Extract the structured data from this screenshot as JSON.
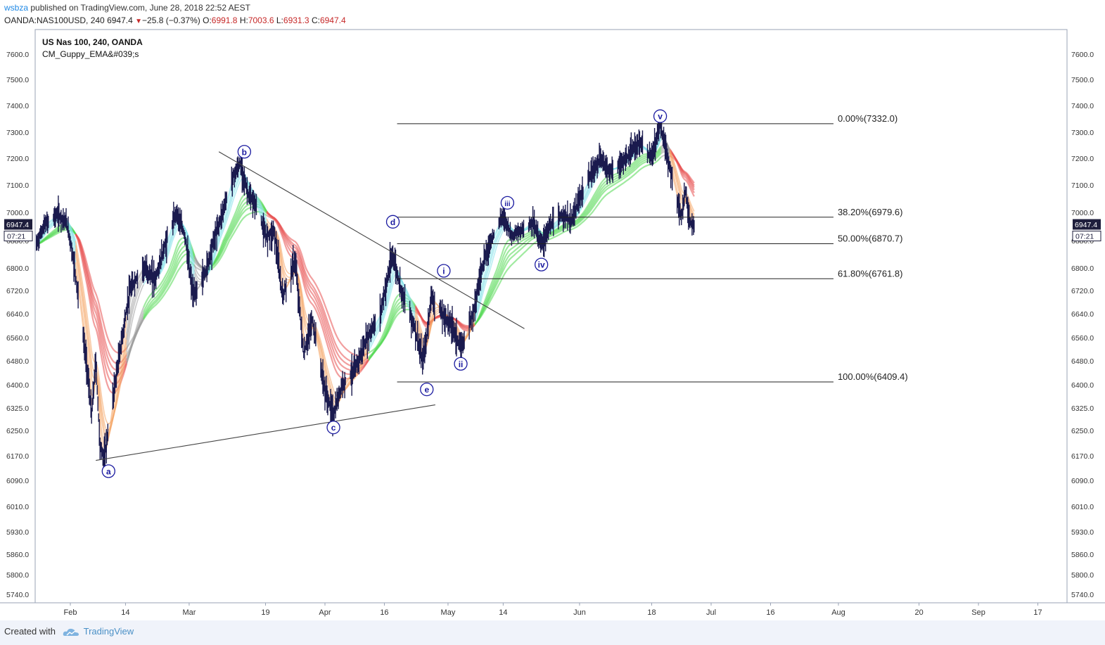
{
  "header": {
    "author": "wsbza",
    "published_text": " published on TradingView.com, June 28, 2018 22:52 AEST",
    "symbol": "OANDA:NAS100USD, 240",
    "last": "6947.4",
    "change": "−25.8 (−0.37%)",
    "o_label": "O:",
    "o_value": "6991.8",
    "h_label": "H:",
    "h_value": "7003.6",
    "l_label": "L:",
    "l_value": "6931.3",
    "c_label": "C:",
    "c_value": "6947.4"
  },
  "legend": {
    "title": "US Nas 100, 240, OANDA",
    "indicator": "CM_Guppy_EMA&#039;s"
  },
  "footer": {
    "created_with": "Created with",
    "brand": "TradingView"
  },
  "colors": {
    "bullish_fast": "#7fe0e8",
    "bullish_slow": "#52d852",
    "bearish_fast": "#f4a261",
    "bearish_slow": "#e85050",
    "neutral": "#9a9a9a",
    "candle": "#1a1a4e",
    "label": "#1a1aa0",
    "price_tag_bg": "#1e1e3c"
  },
  "chart_data": {
    "type": "candlestick",
    "title": "US Nas 100, 240, OANDA",
    "y_ticks": [
      7600.0,
      7500.0,
      7400.0,
      7300.0,
      7200.0,
      7100.0,
      7000.0,
      6880.0,
      6800.0,
      6720.0,
      6640.0,
      6560.0,
      6480.0,
      6400.0,
      6325.0,
      6250.0,
      6170.0,
      6090.0,
      6010.0,
      5930.0,
      5860.0,
      5800.0,
      5740.0
    ],
    "y_tick_labels": [
      "7600.0",
      "7500.0",
      "7400.0",
      "7300.0",
      "7200.0",
      "7100.0",
      "7000.0",
      "6880.0",
      "6800.0",
      "6720.0",
      "6640.0",
      "6560.0",
      "6480.0",
      "6400.0",
      "6325.0",
      "6250.0",
      "6170.0",
      "6090.0",
      "6010.0",
      "5930.0",
      "5860.0",
      "5800.0",
      "5740.0"
    ],
    "x_ticks": [
      {
        "label": "Feb",
        "date": "2018-02-01"
      },
      {
        "label": "14",
        "date": "2018-02-14"
      },
      {
        "label": "Mar",
        "date": "2018-03-01"
      },
      {
        "label": "19",
        "date": "2018-03-19"
      },
      {
        "label": "Apr",
        "date": "2018-04-02"
      },
      {
        "label": "16",
        "date": "2018-04-16"
      },
      {
        "label": "May",
        "date": "2018-05-01"
      },
      {
        "label": "14",
        "date": "2018-05-14"
      },
      {
        "label": "Jun",
        "date": "2018-06-01"
      },
      {
        "label": "18",
        "date": "2018-06-18"
      },
      {
        "label": "Jul",
        "date": "2018-07-02"
      },
      {
        "label": "16",
        "date": "2018-07-16"
      },
      {
        "label": "Aug",
        "date": "2018-08-01"
      },
      {
        "label": "20",
        "date": "2018-08-20"
      },
      {
        "label": "Sep",
        "date": "2018-09-03"
      },
      {
        "label": "17",
        "date": "2018-09-17"
      }
    ],
    "current_price": {
      "value": 6947.4,
      "label": "6947.4",
      "countdown": "07:21"
    },
    "price_path": [
      {
        "date": "2018-01-24",
        "price": 6870
      },
      {
        "date": "2018-01-26",
        "price": 6950
      },
      {
        "date": "2018-01-29",
        "price": 6990
      },
      {
        "date": "2018-01-31",
        "price": 6960
      },
      {
        "date": "2018-02-02",
        "price": 6800
      },
      {
        "date": "2018-02-05",
        "price": 6450
      },
      {
        "date": "2018-02-06",
        "price": 6300
      },
      {
        "date": "2018-02-07",
        "price": 6480
      },
      {
        "date": "2018-02-08",
        "price": 6200
      },
      {
        "date": "2018-02-09",
        "price": 6160
      },
      {
        "date": "2018-02-12",
        "price": 6450
      },
      {
        "date": "2018-02-15",
        "price": 6720
      },
      {
        "date": "2018-02-18",
        "price": 6800
      },
      {
        "date": "2018-02-21",
        "price": 6760
      },
      {
        "date": "2018-02-24",
        "price": 6900
      },
      {
        "date": "2018-02-26",
        "price": 7000
      },
      {
        "date": "2018-02-28",
        "price": 6900
      },
      {
        "date": "2018-03-02",
        "price": 6700
      },
      {
        "date": "2018-03-05",
        "price": 6790
      },
      {
        "date": "2018-03-08",
        "price": 6950
      },
      {
        "date": "2018-03-11",
        "price": 7120
      },
      {
        "date": "2018-03-13",
        "price": 7180
      },
      {
        "date": "2018-03-15",
        "price": 7060
      },
      {
        "date": "2018-03-17",
        "price": 7020
      },
      {
        "date": "2018-03-19",
        "price": 6900
      },
      {
        "date": "2018-03-21",
        "price": 6920
      },
      {
        "date": "2018-03-23",
        "price": 6700
      },
      {
        "date": "2018-03-26",
        "price": 6820
      },
      {
        "date": "2018-03-28",
        "price": 6500
      },
      {
        "date": "2018-03-30",
        "price": 6620
      },
      {
        "date": "2018-04-02",
        "price": 6380
      },
      {
        "date": "2018-04-04",
        "price": 6300
      },
      {
        "date": "2018-04-06",
        "price": 6400
      },
      {
        "date": "2018-04-09",
        "price": 6450
      },
      {
        "date": "2018-04-12",
        "price": 6560
      },
      {
        "date": "2018-04-15",
        "price": 6640
      },
      {
        "date": "2018-04-17",
        "price": 6780
      },
      {
        "date": "2018-04-18",
        "price": 6840
      },
      {
        "date": "2018-04-20",
        "price": 6720
      },
      {
        "date": "2018-04-23",
        "price": 6600
      },
      {
        "date": "2018-04-25",
        "price": 6480
      },
      {
        "date": "2018-04-26",
        "price": 6560
      },
      {
        "date": "2018-04-27",
        "price": 6700
      },
      {
        "date": "2018-04-30",
        "price": 6630
      },
      {
        "date": "2018-05-02",
        "price": 6600
      },
      {
        "date": "2018-05-04",
        "price": 6520
      },
      {
        "date": "2018-05-07",
        "price": 6650
      },
      {
        "date": "2018-05-09",
        "price": 6800
      },
      {
        "date": "2018-05-11",
        "price": 6880
      },
      {
        "date": "2018-05-14",
        "price": 6990
      },
      {
        "date": "2018-05-16",
        "price": 6900
      },
      {
        "date": "2018-05-18",
        "price": 6920
      },
      {
        "date": "2018-05-21",
        "price": 6960
      },
      {
        "date": "2018-05-23",
        "price": 6870
      },
      {
        "date": "2018-05-25",
        "price": 6940
      },
      {
        "date": "2018-05-28",
        "price": 6990
      },
      {
        "date": "2018-05-30",
        "price": 6960
      },
      {
        "date": "2018-06-01",
        "price": 7050
      },
      {
        "date": "2018-06-04",
        "price": 7150
      },
      {
        "date": "2018-06-06",
        "price": 7200
      },
      {
        "date": "2018-06-08",
        "price": 7150
      },
      {
        "date": "2018-06-11",
        "price": 7180
      },
      {
        "date": "2018-06-13",
        "price": 7220
      },
      {
        "date": "2018-06-15",
        "price": 7260
      },
      {
        "date": "2018-06-18",
        "price": 7200
      },
      {
        "date": "2018-06-20",
        "price": 7332
      },
      {
        "date": "2018-06-22",
        "price": 7180
      },
      {
        "date": "2018-06-25",
        "price": 6980
      },
      {
        "date": "2018-06-26",
        "price": 7080
      },
      {
        "date": "2018-06-27",
        "price": 6960
      },
      {
        "date": "2018-06-28",
        "price": 6947
      }
    ],
    "gmma_regimes": [
      {
        "from": "2018-01-24",
        "to": "2018-02-02",
        "trend": "bull"
      },
      {
        "from": "2018-02-02",
        "to": "2018-02-14",
        "trend": "bear"
      },
      {
        "from": "2018-02-14",
        "to": "2018-02-18",
        "trend": "neutral"
      },
      {
        "from": "2018-02-18",
        "to": "2018-03-02",
        "trend": "bull"
      },
      {
        "from": "2018-03-02",
        "to": "2018-03-05",
        "trend": "neutral"
      },
      {
        "from": "2018-03-05",
        "to": "2018-03-19",
        "trend": "bull"
      },
      {
        "from": "2018-03-19",
        "to": "2018-04-12",
        "trend": "bear"
      },
      {
        "from": "2018-04-12",
        "to": "2018-04-23",
        "trend": "bull"
      },
      {
        "from": "2018-04-23",
        "to": "2018-05-07",
        "trend": "bear"
      },
      {
        "from": "2018-05-07",
        "to": "2018-06-20",
        "trend": "bull"
      },
      {
        "from": "2018-06-20",
        "to": "2018-06-22",
        "trend": "neutral"
      },
      {
        "from": "2018-06-22",
        "to": "2018-06-28",
        "trend": "bear"
      }
    ],
    "fibonacci": [
      {
        "ratio": "0.00%",
        "price": 7332.0,
        "label": "0.00%(7332.0)"
      },
      {
        "ratio": "38.20%",
        "price": 6979.6,
        "label": "38.20%(6979.6)"
      },
      {
        "ratio": "50.00%",
        "price": 6870.7,
        "label": "50.00%(6870.7)"
      },
      {
        "ratio": "61.80%",
        "price": 6761.8,
        "label": "61.80%(6761.8)"
      },
      {
        "ratio": "100.00%",
        "price": 6409.4,
        "label": "100.00%(6409.4)"
      }
    ],
    "fib_start_date": "2018-04-19",
    "fib_end_date": "2018-07-01",
    "trendlines": [
      {
        "from": {
          "date": "2018-03-08",
          "price": 7225
        },
        "to": {
          "date": "2018-05-19",
          "price": 6590
        }
      },
      {
        "from": {
          "date": "2018-02-07",
          "price": 6155
        },
        "to": {
          "date": "2018-04-28",
          "price": 6335
        }
      }
    ],
    "wave_labels": [
      {
        "text": "a",
        "date": "2018-02-10",
        "price": 6120
      },
      {
        "text": "b",
        "date": "2018-03-14",
        "price": 7225
      },
      {
        "text": "c",
        "date": "2018-04-04",
        "price": 6260
      },
      {
        "text": "d",
        "date": "2018-04-18",
        "price": 6960
      },
      {
        "text": "e",
        "date": "2018-04-26",
        "price": 6385
      },
      {
        "text": "i",
        "date": "2018-04-30",
        "price": 6790
      },
      {
        "text": "ii",
        "date": "2018-05-04",
        "price": 6470
      },
      {
        "text": "iii",
        "date": "2018-05-15",
        "price": 7035
      },
      {
        "text": "iv",
        "date": "2018-05-23",
        "price": 6810
      },
      {
        "text": "v",
        "date": "2018-06-20",
        "price": 7360
      }
    ]
  }
}
